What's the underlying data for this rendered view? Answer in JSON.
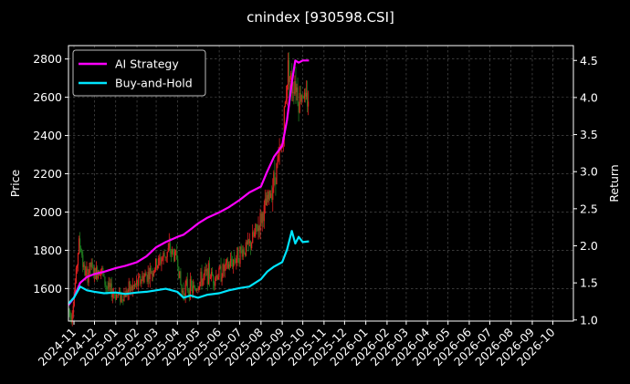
{
  "chart_data": {
    "type": "line",
    "title": "cnindex [930598.CSI]",
    "ylabel": "Price",
    "y2label": "Return",
    "ylim": [
      1430,
      2870
    ],
    "y2lim": [
      0.985,
      4.7
    ],
    "yticks": [
      1600,
      1800,
      2000,
      2200,
      2400,
      2600,
      2800
    ],
    "y2ticks": [
      1.0,
      1.5,
      2.0,
      2.5,
      3.0,
      3.5,
      4.0,
      4.5
    ],
    "y2tick_labels": [
      "1.0",
      "1.5",
      "2.0",
      "2.5",
      "3.0",
      "3.5",
      "4.0",
      "4.5"
    ],
    "xlim": [
      "2024-10-24",
      "2026-10-31"
    ],
    "xticks": [
      "2024-11",
      "2024-12",
      "2025-01",
      "2025-02",
      "2025-03",
      "2025-04",
      "2025-05",
      "2025-06",
      "2025-07",
      "2025-08",
      "2025-09",
      "2025-10",
      "2025-11",
      "2025-12",
      "2026-01",
      "2026-02",
      "2026-03",
      "2026-04",
      "2026-05",
      "2026-06",
      "2026-07",
      "2026-08",
      "2026-09",
      "2026-10"
    ],
    "grid": true,
    "legend_position": "top-left",
    "legend": [
      {
        "name": "AI Strategy",
        "color": "#ff00ff"
      },
      {
        "name": "Buy-and-Hold",
        "color": "#00e5ff"
      }
    ],
    "candle_colors": {
      "up": "#e02020",
      "down": "#1f7a1f"
    },
    "price_close": [
      [
        "2024-10-24",
        1490
      ],
      [
        "2024-10-28",
        1450
      ],
      [
        "2024-11-01",
        1560
      ],
      [
        "2024-11-05",
        1710
      ],
      [
        "2024-11-08",
        1840
      ],
      [
        "2024-11-12",
        1800
      ],
      [
        "2024-11-15",
        1700
      ],
      [
        "2024-11-20",
        1660
      ],
      [
        "2024-11-25",
        1720
      ],
      [
        "2024-12-01",
        1670
      ],
      [
        "2024-12-05",
        1690
      ],
      [
        "2024-12-10",
        1720
      ],
      [
        "2024-12-15",
        1640
      ],
      [
        "2024-12-20",
        1600
      ],
      [
        "2025-01-01",
        1570
      ],
      [
        "2025-01-10",
        1560
      ],
      [
        "2025-01-20",
        1590
      ],
      [
        "2025-02-01",
        1620
      ],
      [
        "2025-02-10",
        1660
      ],
      [
        "2025-02-20",
        1680
      ],
      [
        "2025-03-01",
        1720
      ],
      [
        "2025-03-10",
        1760
      ],
      [
        "2025-03-20",
        1800
      ],
      [
        "2025-04-01",
        1760
      ],
      [
        "2025-04-07",
        1580
      ],
      [
        "2025-04-15",
        1610
      ],
      [
        "2025-04-25",
        1590
      ],
      [
        "2025-05-05",
        1640
      ],
      [
        "2025-05-15",
        1680
      ],
      [
        "2025-05-25",
        1660
      ],
      [
        "2025-06-05",
        1690
      ],
      [
        "2025-06-15",
        1720
      ],
      [
        "2025-06-25",
        1760
      ],
      [
        "2025-07-05",
        1800
      ],
      [
        "2025-07-15",
        1820
      ],
      [
        "2025-07-25",
        1900
      ],
      [
        "2025-08-05",
        2000
      ],
      [
        "2025-08-15",
        2100
      ],
      [
        "2025-08-25",
        2250
      ],
      [
        "2025-09-01",
        2350
      ],
      [
        "2025-09-05",
        2550
      ],
      [
        "2025-09-10",
        2780
      ],
      [
        "2025-09-15",
        2650
      ],
      [
        "2025-09-20",
        2700
      ],
      [
        "2025-09-25",
        2580
      ],
      [
        "2025-10-01",
        2640
      ],
      [
        "2025-10-05",
        2560
      ],
      [
        "2025-10-10",
        2620
      ]
    ],
    "series": [
      {
        "name": "AI Strategy",
        "color": "#ff00ff",
        "axis": "right",
        "x": [
          "2024-10-24",
          "2024-11-01",
          "2024-11-10",
          "2024-11-20",
          "2024-12-01",
          "2024-12-15",
          "2025-01-01",
          "2025-01-15",
          "2025-02-01",
          "2025-02-15",
          "2025-03-01",
          "2025-03-15",
          "2025-04-01",
          "2025-04-10",
          "2025-04-20",
          "2025-05-01",
          "2025-05-15",
          "2025-06-01",
          "2025-06-15",
          "2025-07-01",
          "2025-07-15",
          "2025-08-01",
          "2025-08-10",
          "2025-08-20",
          "2025-09-01",
          "2025-09-08",
          "2025-09-15",
          "2025-09-20",
          "2025-09-25",
          "2025-10-01",
          "2025-10-10"
        ],
        "values": [
          1.2,
          1.3,
          1.5,
          1.58,
          1.62,
          1.65,
          1.7,
          1.73,
          1.78,
          1.86,
          1.98,
          2.05,
          2.12,
          2.15,
          2.22,
          2.3,
          2.38,
          2.45,
          2.52,
          2.62,
          2.72,
          2.8,
          3.0,
          3.2,
          3.35,
          3.7,
          4.2,
          4.5,
          4.47,
          4.5,
          4.5
        ]
      },
      {
        "name": "Buy-and-Hold",
        "color": "#00e5ff",
        "axis": "right",
        "x": [
          "2024-10-24",
          "2024-11-01",
          "2024-11-10",
          "2024-11-20",
          "2024-12-01",
          "2024-12-15",
          "2025-01-01",
          "2025-01-15",
          "2025-02-01",
          "2025-02-15",
          "2025-03-01",
          "2025-03-15",
          "2025-04-01",
          "2025-04-10",
          "2025-04-20",
          "2025-05-01",
          "2025-05-15",
          "2025-06-01",
          "2025-06-15",
          "2025-07-01",
          "2025-07-15",
          "2025-08-01",
          "2025-08-10",
          "2025-08-20",
          "2025-09-01",
          "2025-09-08",
          "2025-09-15",
          "2025-09-20",
          "2025-09-25",
          "2025-10-01",
          "2025-10-10"
        ],
        "values": [
          1.22,
          1.3,
          1.45,
          1.4,
          1.38,
          1.36,
          1.37,
          1.35,
          1.37,
          1.38,
          1.4,
          1.42,
          1.38,
          1.3,
          1.33,
          1.3,
          1.34,
          1.36,
          1.4,
          1.43,
          1.45,
          1.55,
          1.65,
          1.72,
          1.78,
          1.95,
          2.2,
          2.03,
          2.12,
          2.05,
          2.06
        ]
      }
    ]
  }
}
